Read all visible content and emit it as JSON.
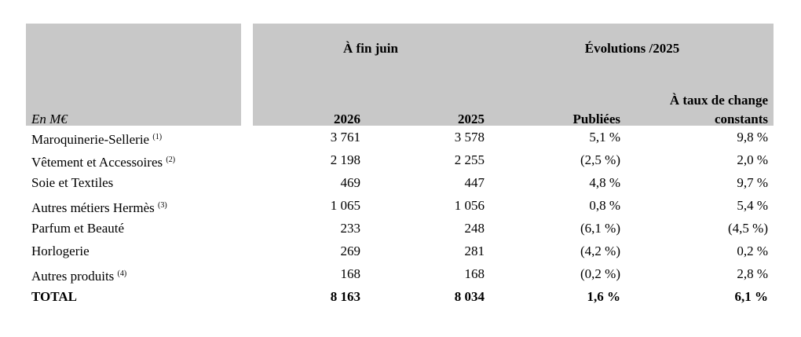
{
  "table": {
    "header": {
      "unit": "En M€",
      "group1": "À fin juin",
      "group2": "Évolutions /2025",
      "columns": [
        "2026",
        "2025",
        "Publiées",
        "À taux de change",
        "constants"
      ]
    },
    "rows": [
      {
        "label": "Maroquinerie-Sellerie",
        "note": "(1)",
        "cells": [
          "3 761",
          "3 578",
          "5,1 %",
          "9,8 %"
        ]
      },
      {
        "label": "Vêtement et Accessoires",
        "note": "(2)",
        "cells": [
          "2 198",
          "2 255",
          "(2,5 %)",
          "2,0 %"
        ]
      },
      {
        "label": "Soie et Textiles",
        "cells": [
          "469",
          "447",
          "4,8 %",
          "9,7 %"
        ]
      },
      {
        "label": "Autres métiers Hermès",
        "note": "(3)",
        "cells": [
          "1 065",
          "1 056",
          "0,8 %",
          "5,4 %"
        ]
      },
      {
        "label": "Parfum et Beauté",
        "cells": [
          "233",
          "248",
          "(6,1 %)",
          "(4,5 %)"
        ]
      },
      {
        "label": "Horlogerie",
        "cells": [
          "269",
          "281",
          "(4,2 %)",
          "0,2 %"
        ]
      },
      {
        "label": "Autres produits",
        "note": "(4)",
        "cells": [
          "168",
          "168",
          "(0,2 %)",
          "2,8 %"
        ]
      },
      {
        "label": "TOTAL",
        "cells": [
          "8 163",
          "8 034",
          "1,6 %",
          "6,1 %"
        ],
        "bold": true
      }
    ]
  }
}
